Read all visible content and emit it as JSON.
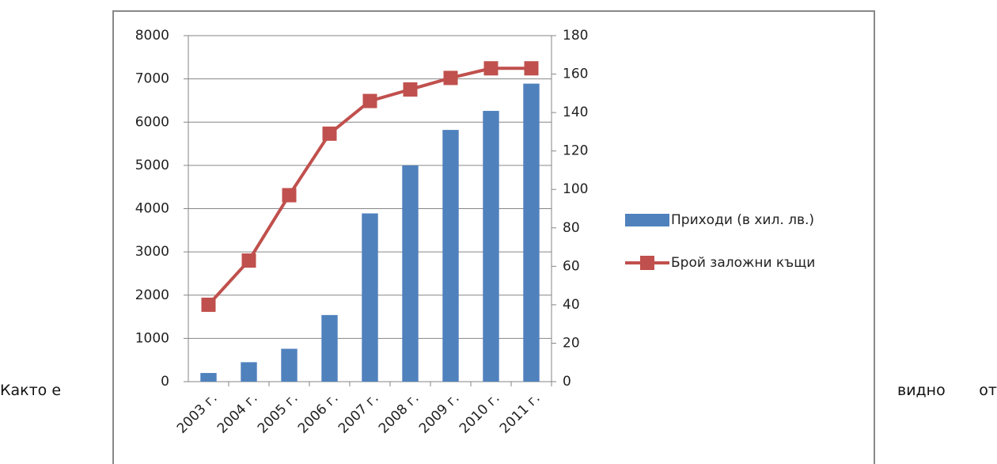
{
  "document": {
    "text": [
      "Както е",
      "видно от"
    ]
  },
  "chart_data": {
    "type": "bar",
    "categories": [
      "2003 г.",
      "2004 г.",
      "2005 г.",
      "2006 г.",
      "2007 г.",
      "2008 г.",
      "2009 г.",
      "2010 г.",
      "2011 г."
    ],
    "series": [
      {
        "name": "Приходи (в хил. лв.)",
        "color": "#4f81bd",
        "type": "bar",
        "values": [
          200,
          450,
          760,
          1540,
          3890,
          5000,
          5820,
          6260,
          6890
        ]
      },
      {
        "name": "Брой заложни къщи",
        "color": "#c0504d",
        "type": "line",
        "axis": "y2",
        "values": [
          40,
          63,
          97,
          129,
          146,
          152,
          158,
          163,
          163
        ]
      }
    ],
    "ylim": [
      0,
      8000
    ],
    "yticks": [
      0,
      1000,
      2000,
      3000,
      4000,
      5000,
      6000,
      7000,
      8000
    ],
    "y2lim": [
      0,
      180
    ],
    "y2ticks": [
      0,
      20,
      40,
      60,
      80,
      100,
      120,
      140,
      160,
      180
    ],
    "grid": true,
    "legend": "right"
  }
}
